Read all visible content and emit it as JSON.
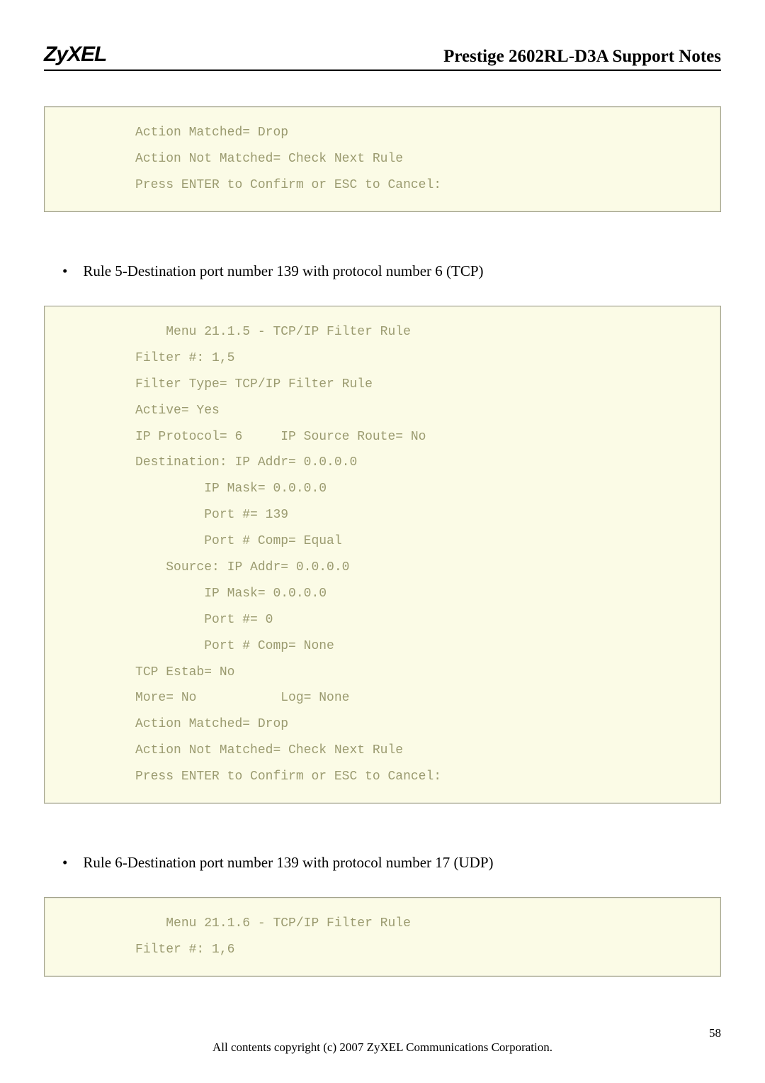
{
  "header": {
    "logo": "ZyXEL",
    "title": "Prestige 2602RL-D3A Support Notes"
  },
  "box1": {
    "lines": [
      "          Action Matched= Drop",
      "          Action Not Matched= Check Next Rule",
      "          Press ENTER to Confirm or ESC to Cancel:"
    ]
  },
  "bullet1": "Rule 5-Destination port number 139 with protocol number 6 (TCP)",
  "box2": {
    "lines": [
      "              Menu 21.1.5 - TCP/IP Filter Rule",
      "          Filter #: 1,5",
      "          Filter Type= TCP/IP Filter Rule",
      "          Active= Yes",
      "          IP Protocol= 6     IP Source Route= No",
      "          Destination: IP Addr= 0.0.0.0",
      "                   IP Mask= 0.0.0.0",
      "                   Port #= 139",
      "                   Port # Comp= Equal",
      "              Source: IP Addr= 0.0.0.0",
      "                   IP Mask= 0.0.0.0",
      "                   Port #= 0",
      "                   Port # Comp= None",
      "          TCP Estab= No",
      "          More= No           Log= None",
      "          Action Matched= Drop",
      "          Action Not Matched= Check Next Rule",
      "          Press ENTER to Confirm or ESC to Cancel:"
    ]
  },
  "bullet2": "Rule 6-Destination port number 139 with protocol number 17 (UDP)",
  "box3": {
    "lines": [
      "              Menu 21.1.6 - TCP/IP Filter Rule",
      "          Filter #: 1,6"
    ]
  },
  "footer": {
    "copyright": "All contents copyright (c) 2007 ZyXEL Communications Corporation.",
    "page": "58"
  }
}
